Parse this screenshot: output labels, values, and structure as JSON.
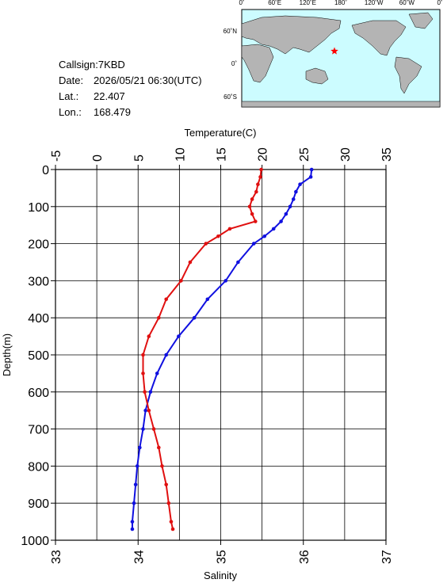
{
  "info": {
    "callsign": "Callsign:7KBD",
    "date_label": "Date:",
    "date": "2026/05/21 06:30(UTC)",
    "lat_label": "Lat.:",
    "lat": 22.407,
    "lon_label": "Lon.:",
    "lon": 168.479
  },
  "map": {
    "lon_labels": [
      "0˚",
      "60˚E",
      "120˚E",
      "180˚",
      "120˚W",
      "60˚W",
      "0˚"
    ],
    "lat_labels": [
      "60˚N",
      "0˚",
      "60˚S"
    ],
    "marker_color": "#ff0000"
  },
  "chart_data": {
    "type": "profile",
    "xlabel": "Temperature(C)",
    "xlim": [
      -5,
      35
    ],
    "xticks": [
      -5,
      0,
      5,
      10,
      15,
      20,
      25,
      30,
      35
    ],
    "x2label": "Salinity",
    "x2lim": [
      33,
      37
    ],
    "x2ticks": [
      33,
      34,
      35,
      36,
      37
    ],
    "ylabel": "Depth(m)",
    "ylim": [
      0,
      1000
    ],
    "y_inverted": true,
    "yticks": [
      0,
      100,
      200,
      300,
      400,
      500,
      600,
      700,
      800,
      900,
      1000
    ],
    "grid": true,
    "y": [
      0,
      20,
      40,
      60,
      80,
      100,
      120,
      140,
      160,
      180,
      200,
      250,
      300,
      350,
      400,
      450,
      500,
      550,
      600,
      650,
      700,
      750,
      800,
      850,
      900,
      950,
      970
    ],
    "series": [
      {
        "color": "#1010e0",
        "axis": "x",
        "values": [
          26.0,
          25.9,
          24.6,
          24.1,
          23.8,
          23.4,
          22.9,
          22.3,
          21.4,
          20.3,
          19.0,
          17.1,
          15.6,
          13.4,
          11.8,
          9.9,
          8.4,
          7.3,
          6.5,
          5.9,
          5.6,
          5.2,
          4.9,
          4.7,
          4.5,
          4.3,
          4.3
        ]
      },
      {
        "color": "#e01010",
        "axis": "x2",
        "values": [
          35.49,
          35.48,
          35.45,
          35.43,
          35.38,
          35.35,
          35.38,
          35.42,
          35.11,
          34.97,
          34.82,
          34.63,
          34.52,
          34.34,
          34.25,
          34.13,
          34.06,
          34.06,
          34.08,
          34.13,
          34.19,
          34.25,
          34.29,
          34.34,
          34.37,
          34.4,
          34.42
        ]
      }
    ]
  }
}
